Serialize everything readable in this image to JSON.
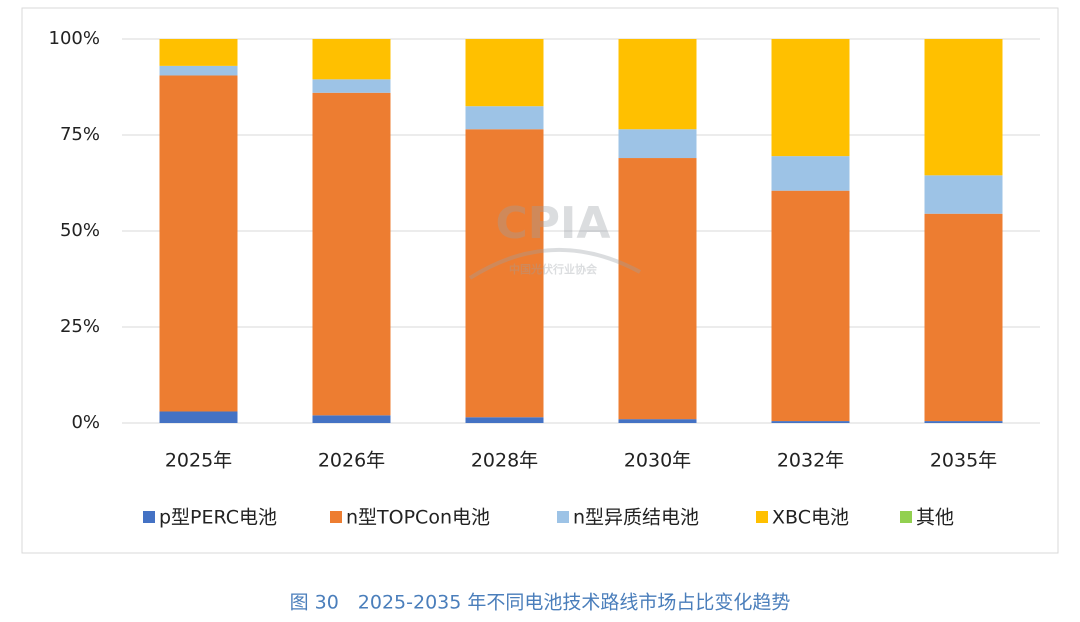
{
  "chart_data": {
    "type": "stacked_bar",
    "caption": "图 30　2025-2035 年不同电池技术路线市场占比变化趋势",
    "watermark": {
      "logo": "CPIA",
      "name": "中国光伏行业协会"
    },
    "categories": [
      "2025年",
      "2026年",
      "2028年",
      "2030年",
      "2032年",
      "2035年"
    ],
    "series": [
      {
        "name": "p型PERC电池",
        "color": "#4472c4",
        "values": [
          3,
          2,
          1.5,
          1,
          0.5,
          0.5
        ]
      },
      {
        "name": "n型TOPCon电池",
        "color": "#ed7d31",
        "values": [
          87.5,
          84,
          75,
          68,
          60,
          54
        ]
      },
      {
        "name": "n型异质结电池",
        "color": "#9dc3e6",
        "values": [
          2.5,
          3.5,
          6,
          7.5,
          9,
          10
        ]
      },
      {
        "name": "XBC电池",
        "color": "#ffc000",
        "values": [
          7,
          10.5,
          17.5,
          23.5,
          30.5,
          35.5
        ]
      },
      {
        "name": "其他",
        "color": "#92d050",
        "values": [
          0,
          0,
          0,
          0,
          0,
          0
        ]
      }
    ],
    "ylim": [
      0,
      100
    ],
    "yticks": [
      {
        "value": 0,
        "label": "0%"
      },
      {
        "value": 25,
        "label": "25%"
      },
      {
        "value": 50,
        "label": "50%"
      },
      {
        "value": 75,
        "label": "75%"
      },
      {
        "value": 100,
        "label": "100%"
      }
    ],
    "grid": true
  }
}
